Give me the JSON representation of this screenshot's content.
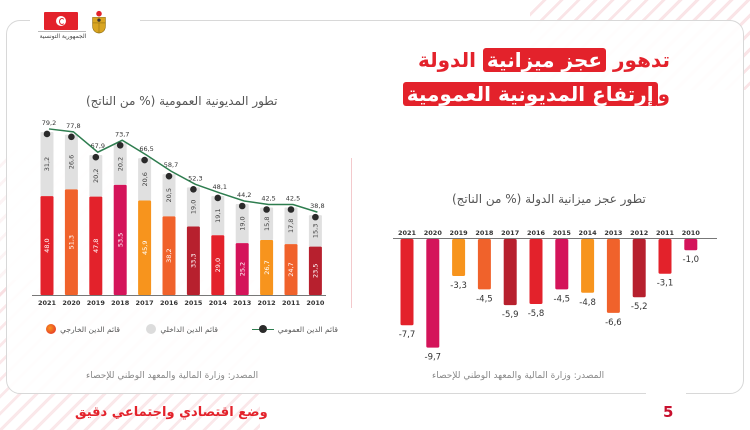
{
  "header": {
    "country_label": "الجمهورية التونسية",
    "flag_icon": "tunisia-flag-icon",
    "emblem_icon": "tunisia-coat-of-arms-icon"
  },
  "title": {
    "line1_prefix": "تدهور ",
    "line1_highlight": "عجز ميزانية",
    "line1_suffix": " الدولة",
    "line2_prefix": "و",
    "line2_highlight": "إرتفاع المديونية العمومية"
  },
  "colors": {
    "accent": "#e3222b",
    "domestic_debt": "#e0e0e0",
    "total_debt_line": "#2e7d4f",
    "marker": "#2b2b2b"
  },
  "chart_data": [
    {
      "type": "bar",
      "subtype": "stacked-with-line",
      "title": "تطور المديونية العمومية  (% من الناتج)",
      "categories": [
        "2021",
        "2020",
        "2019",
        "2018",
        "2017",
        "2016",
        "2015",
        "2014",
        "2013",
        "2012",
        "2011",
        "2010"
      ],
      "series": [
        {
          "name": "قائم الدين الخارجي",
          "kind": "bar",
          "values": [
            48.0,
            51.3,
            47.8,
            53.5,
            45.9,
            38.2,
            33.3,
            29.0,
            25.2,
            26.7,
            24.7,
            23.5
          ],
          "labels": [
            "48,0",
            "51,3",
            "47,8",
            "53,5",
            "45,9",
            "38,2",
            "33,3",
            "29,0",
            "25,2",
            "26,7",
            "24,7",
            "23,5"
          ],
          "colors": [
            "#e3222b",
            "#f0622b",
            "#e3222b",
            "#d4145a",
            "#f7941d",
            "#f0622b",
            "#b7202e",
            "#e3222b",
            "#d4145a",
            "#f7941d",
            "#f0622b",
            "#b7202e"
          ]
        },
        {
          "name": "قائم الدين الداخلي",
          "kind": "bar",
          "color": "#e0e0e0",
          "values": [
            31.2,
            26.6,
            20.2,
            20.2,
            20.6,
            20.5,
            19.0,
            19.1,
            19.0,
            15.8,
            17.8,
            15.3
          ],
          "labels": [
            "31,2",
            "26,6",
            "20,2",
            "20,2",
            "20,6",
            "20,5",
            "19,0",
            "19,1",
            "19,0",
            "15,8",
            "17,8",
            "15,3"
          ]
        },
        {
          "name": "قائم الدين العمومي",
          "kind": "line",
          "color": "#2e7d4f",
          "values": [
            79.2,
            77.8,
            67.9,
            73.7,
            66.5,
            58.7,
            52.3,
            48.1,
            44.2,
            42.5,
            42.5,
            38.8
          ],
          "labels": [
            "79,2",
            "77,8",
            "67,9",
            "73,7",
            "66,5",
            "58,7",
            "52,3",
            "48,1",
            "44,2",
            "42,5",
            "42,5",
            "38,8"
          ]
        }
      ],
      "ylim": [
        0,
        85
      ],
      "legend": "bottom",
      "grid": false,
      "source": "المصدر: وزارة المالية والمعهد الوطني للإحصاء"
    },
    {
      "type": "bar",
      "title": "تطور عجز ميزانية الدولة  (% من الناتج)",
      "categories": [
        "2021",
        "2020",
        "2019",
        "2018",
        "2017",
        "2016",
        "2015",
        "2014",
        "2013",
        "2012",
        "2011",
        "2010"
      ],
      "values": [
        -7.7,
        -9.7,
        -3.3,
        -4.5,
        -5.9,
        -5.8,
        -4.5,
        -4.8,
        -6.6,
        -5.2,
        -3.1,
        -1.0
      ],
      "labels": [
        "-7,7",
        "-9,7",
        "-3,3",
        "-4,5",
        "-5,9",
        "-5,8",
        "-4,5",
        "-4,8",
        "-6,6",
        "-5,2",
        "-3,1",
        "-1,0"
      ],
      "colors": [
        "#e3222b",
        "#d4145a",
        "#f7941d",
        "#f0622b",
        "#b7202e",
        "#e3222b",
        "#d4145a",
        "#f7941d",
        "#f0622b",
        "#b7202e",
        "#e3222b",
        "#d4145a"
      ],
      "ylim": [
        -10,
        0
      ],
      "grid": false,
      "source": "المصدر: وزارة المالية والمعهد الوطني للإحصاء"
    }
  ],
  "legend": {
    "total": "قائم الدين العمومي",
    "domestic": "قائم الدين الداخلي",
    "external": "قائم الدين الخارجي"
  },
  "footer": {
    "section_title": "وضع اقتصادي واجتماعي دقيق",
    "page_number": "5"
  }
}
